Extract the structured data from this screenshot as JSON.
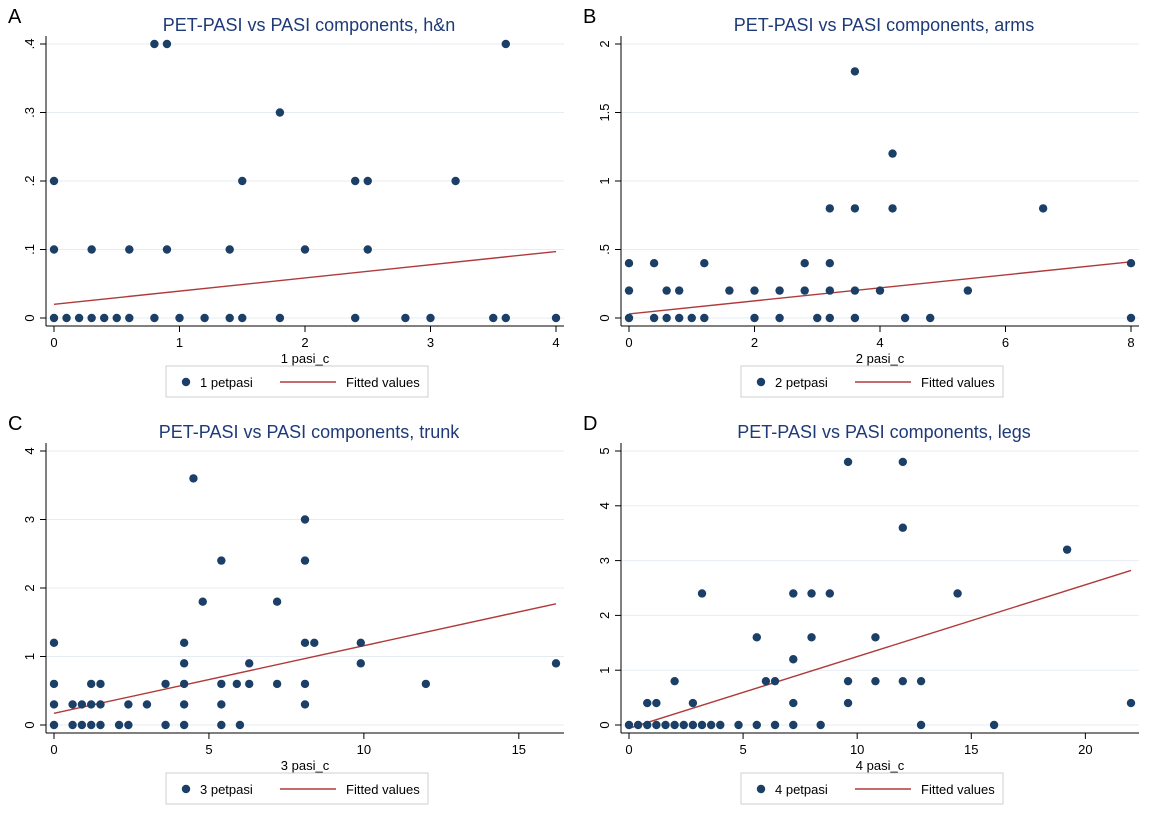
{
  "chart_data": [
    {
      "panel_letter": "A",
      "type": "scatter",
      "title": "PET-PASI vs PASI components, h&n",
      "xlabel": "1 pasi_c",
      "ylabel": "",
      "xlim": [
        0,
        4
      ],
      "ylim": [
        0,
        0.4
      ],
      "xticks": [
        0,
        1,
        2,
        3,
        4
      ],
      "xtick_labels": [
        "0",
        "1",
        "2",
        "3",
        "4"
      ],
      "yticks": [
        0,
        0.1,
        0.2,
        0.3,
        0.4
      ],
      "ytick_labels": [
        "0",
        ".1",
        ".2",
        ".3",
        ".4"
      ],
      "grid": true,
      "legend_placement": "bottom",
      "series": [
        {
          "name": "1 petpasi",
          "kind": "scatter",
          "x": [
            0,
            0.1,
            0.2,
            0.3,
            0.4,
            0.5,
            0.6,
            0.8,
            1.0,
            1.2,
            1.4,
            1.5,
            1.8,
            2.4,
            2.8,
            3.0,
            3.5,
            3.6,
            4.0,
            0,
            0.3,
            0.6,
            0.9,
            1.4,
            2.0,
            2.5,
            0,
            1.5,
            2.4,
            2.5,
            3.2,
            1.8,
            0.8,
            0.9,
            3.6
          ],
          "y": [
            0,
            0,
            0,
            0,
            0,
            0,
            0,
            0,
            0,
            0,
            0,
            0,
            0,
            0,
            0,
            0,
            0,
            0,
            0,
            0.1,
            0.1,
            0.1,
            0.1,
            0.1,
            0.1,
            0.1,
            0.2,
            0.2,
            0.2,
            0.2,
            0.2,
            0.3,
            0.4,
            0.4,
            0.4
          ]
        },
        {
          "name": "Fitted values",
          "kind": "line",
          "x": [
            0,
            4
          ],
          "y": [
            0.02,
            0.097
          ]
        }
      ]
    },
    {
      "panel_letter": "B",
      "type": "scatter",
      "title": "PET-PASI vs PASI components, arms",
      "xlabel": "2 pasi_c",
      "ylabel": "",
      "xlim": [
        0,
        8
      ],
      "ylim": [
        0,
        2
      ],
      "xticks": [
        0,
        2,
        4,
        6,
        8
      ],
      "xtick_labels": [
        "0",
        "2",
        "4",
        "6",
        "8"
      ],
      "yticks": [
        0,
        0.5,
        1,
        1.5,
        2
      ],
      "ytick_labels": [
        "0",
        ".5",
        "1",
        "1.5",
        "2"
      ],
      "grid": true,
      "legend_placement": "bottom",
      "series": [
        {
          "name": "2 petpasi",
          "kind": "scatter",
          "x": [
            0,
            0.4,
            0.6,
            0.8,
            1.0,
            1.2,
            2.0,
            2.4,
            3.0,
            3.2,
            3.6,
            4.4,
            4.8,
            8.0,
            0,
            0.6,
            0.8,
            1.6,
            2.0,
            2.4,
            2.8,
            3.2,
            3.6,
            4.0,
            5.4,
            0,
            0.4,
            1.2,
            2.8,
            3.2,
            3.2,
            3.6,
            4.2,
            6.6,
            4.2,
            3.6,
            8.0
          ],
          "y": [
            0,
            0,
            0,
            0,
            0,
            0,
            0,
            0,
            0,
            0,
            0,
            0,
            0,
            0,
            0.2,
            0.2,
            0.2,
            0.2,
            0.2,
            0.2,
            0.2,
            0.2,
            0.2,
            0.2,
            0.2,
            0.4,
            0.4,
            0.4,
            0.4,
            0.4,
            0.8,
            0.8,
            0.8,
            0.8,
            1.2,
            1.8,
            0.4
          ]
        },
        {
          "name": "Fitted values",
          "kind": "line",
          "x": [
            0,
            8
          ],
          "y": [
            0.03,
            0.41
          ]
        }
      ]
    },
    {
      "panel_letter": "C",
      "type": "scatter",
      "title": "PET-PASI vs PASI components, trunk",
      "xlabel": "3 pasi_c",
      "ylabel": "",
      "xlim": [
        0,
        16.2
      ],
      "ylim": [
        0,
        4
      ],
      "xticks": [
        0,
        5,
        10,
        15
      ],
      "xtick_labels": [
        "0",
        "5",
        "10",
        "15"
      ],
      "yticks": [
        0,
        1,
        2,
        3,
        4
      ],
      "ytick_labels": [
        "0",
        "1",
        "2",
        "3",
        "4"
      ],
      "grid": true,
      "legend_placement": "bottom",
      "series": [
        {
          "name": "3 petpasi",
          "kind": "scatter",
          "x": [
            0,
            0.6,
            0.9,
            1.2,
            1.5,
            2.1,
            2.4,
            3.6,
            4.2,
            5.4,
            6.0,
            0,
            0.6,
            0.9,
            1.2,
            1.5,
            2.4,
            3.0,
            4.2,
            5.4,
            8.1,
            0,
            1.2,
            1.5,
            3.6,
            4.2,
            5.4,
            5.9,
            6.3,
            7.2,
            8.1,
            12.0,
            16.2,
            4.2,
            6.3,
            9.9,
            0,
            4.2,
            8.1,
            8.4,
            9.9,
            4.8,
            7.2,
            5.4,
            8.1,
            8.1,
            4.5
          ],
          "y": [
            0,
            0,
            0,
            0,
            0,
            0,
            0,
            0,
            0,
            0,
            0,
            0.3,
            0.3,
            0.3,
            0.3,
            0.3,
            0.3,
            0.3,
            0.3,
            0.3,
            0.3,
            0.6,
            0.6,
            0.6,
            0.6,
            0.6,
            0.6,
            0.6,
            0.6,
            0.6,
            0.6,
            0.6,
            0.9,
            0.9,
            0.9,
            0.9,
            1.2,
            1.2,
            1.2,
            1.2,
            1.2,
            1.8,
            1.8,
            2.4,
            2.4,
            3.0,
            3.6
          ]
        },
        {
          "name": "Fitted values",
          "kind": "line",
          "x": [
            0,
            16.2
          ],
          "y": [
            0.17,
            1.77
          ]
        }
      ]
    },
    {
      "panel_letter": "D",
      "type": "scatter",
      "title": "PET-PASI vs PASI components, legs",
      "xlabel": "4 pasi_c",
      "ylabel": "",
      "xlim": [
        0,
        22
      ],
      "ylim": [
        0,
        5
      ],
      "xticks": [
        0,
        5,
        10,
        15,
        20
      ],
      "xtick_labels": [
        "0",
        "5",
        "10",
        "15",
        "20"
      ],
      "yticks": [
        0,
        1,
        2,
        3,
        4,
        5
      ],
      "ytick_labels": [
        "0",
        "1",
        "2",
        "3",
        "4",
        "5"
      ],
      "grid": true,
      "legend_placement": "bottom",
      "series": [
        {
          "name": "4 petpasi",
          "kind": "scatter",
          "x": [
            0,
            0.4,
            0.8,
            1.2,
            1.6,
            2.0,
            2.4,
            2.8,
            3.2,
            3.6,
            4.0,
            4.8,
            5.6,
            6.4,
            7.2,
            8.4,
            12.8,
            16.0,
            7.2,
            9.6,
            22.0,
            0.8,
            1.2,
            2.8,
            6.0,
            6.4,
            9.6,
            10.8,
            12.0,
            12.8,
            2.0,
            7.2,
            5.6,
            8.0,
            10.8,
            7.2,
            8.0,
            8.8,
            3.2,
            14.4,
            12.0,
            19.2,
            9.6,
            12.0
          ],
          "y": [
            0,
            0,
            0,
            0,
            0,
            0,
            0,
            0,
            0,
            0,
            0,
            0,
            0,
            0,
            0,
            0,
            0,
            0,
            0.4,
            0.4,
            0.4,
            0.4,
            0.4,
            0.4,
            0.8,
            0.8,
            0.8,
            0.8,
            0.8,
            0.8,
            0.8,
            1.2,
            1.6,
            1.6,
            1.6,
            2.4,
            2.4,
            2.4,
            2.4,
            2.4,
            3.6,
            3.2,
            4.8,
            4.8
          ]
        },
        {
          "name": "Fitted values",
          "kind": "line",
          "x": [
            0,
            22
          ],
          "y": [
            -0.06,
            2.82
          ]
        }
      ]
    }
  ],
  "colors": {
    "title": "#1e3a78",
    "marker": "#1b3f66",
    "fit_line": "#b03a3a",
    "grid": "#e6edf2",
    "axis": "#000000"
  }
}
